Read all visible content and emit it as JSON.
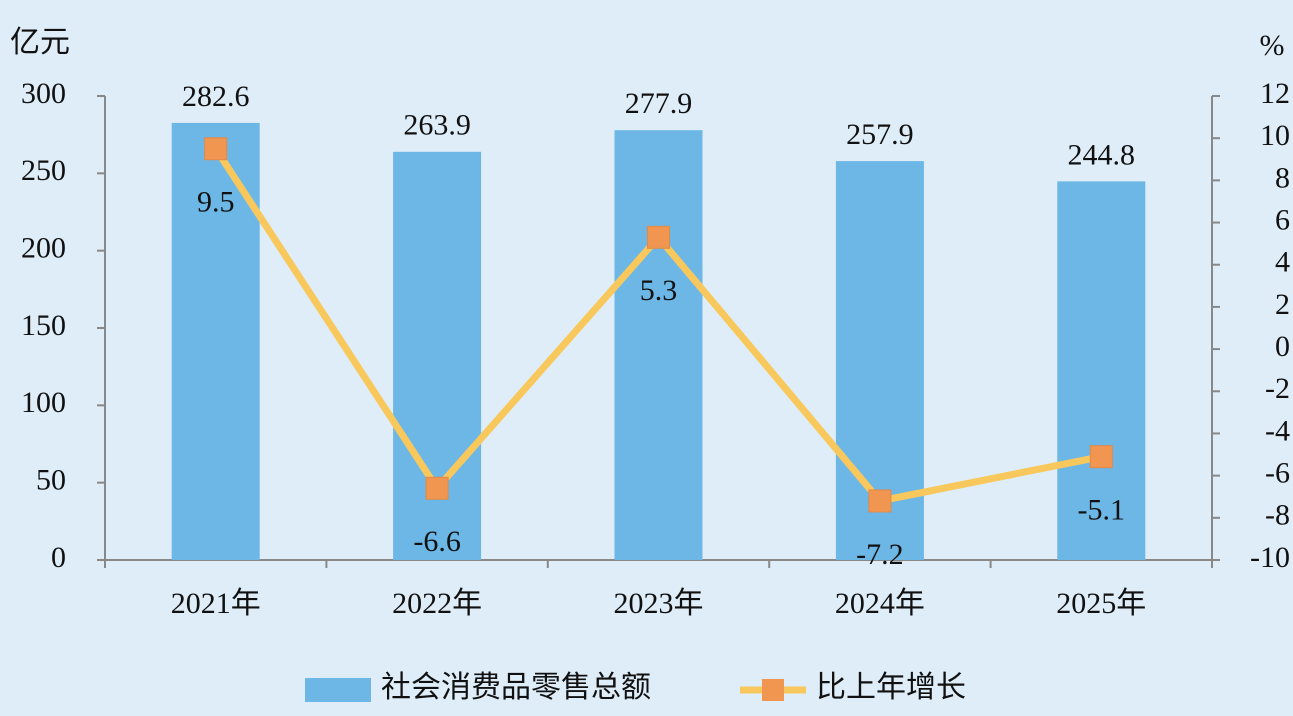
{
  "chart_data": {
    "type": "bar",
    "y_label": "亿元",
    "y2_label": "%",
    "categories": [
      "2021年",
      "2022年",
      "2023年",
      "2024年",
      "2025年"
    ],
    "series": [
      {
        "name": "社会消费品零售总额",
        "type": "bar",
        "color": "#6cb7e6",
        "values": [
          282.6,
          263.9,
          277.9,
          257.9,
          244.8
        ]
      },
      {
        "name": "比上年增长",
        "type": "line",
        "axis": "y2",
        "color": "#f9c85c",
        "marker_color": "#f09650",
        "values": [
          9.5,
          -6.6,
          5.3,
          -7.2,
          -5.1
        ]
      }
    ],
    "ylim": [
      0,
      300
    ],
    "yticks": [
      0,
      50,
      100,
      150,
      200,
      250,
      300
    ],
    "y2lim": [
      -10,
      12
    ],
    "y2ticks": [
      -10,
      -8,
      -6,
      -4,
      -2,
      0,
      2,
      4,
      6,
      8,
      10,
      12
    ],
    "legend": "bottom"
  }
}
